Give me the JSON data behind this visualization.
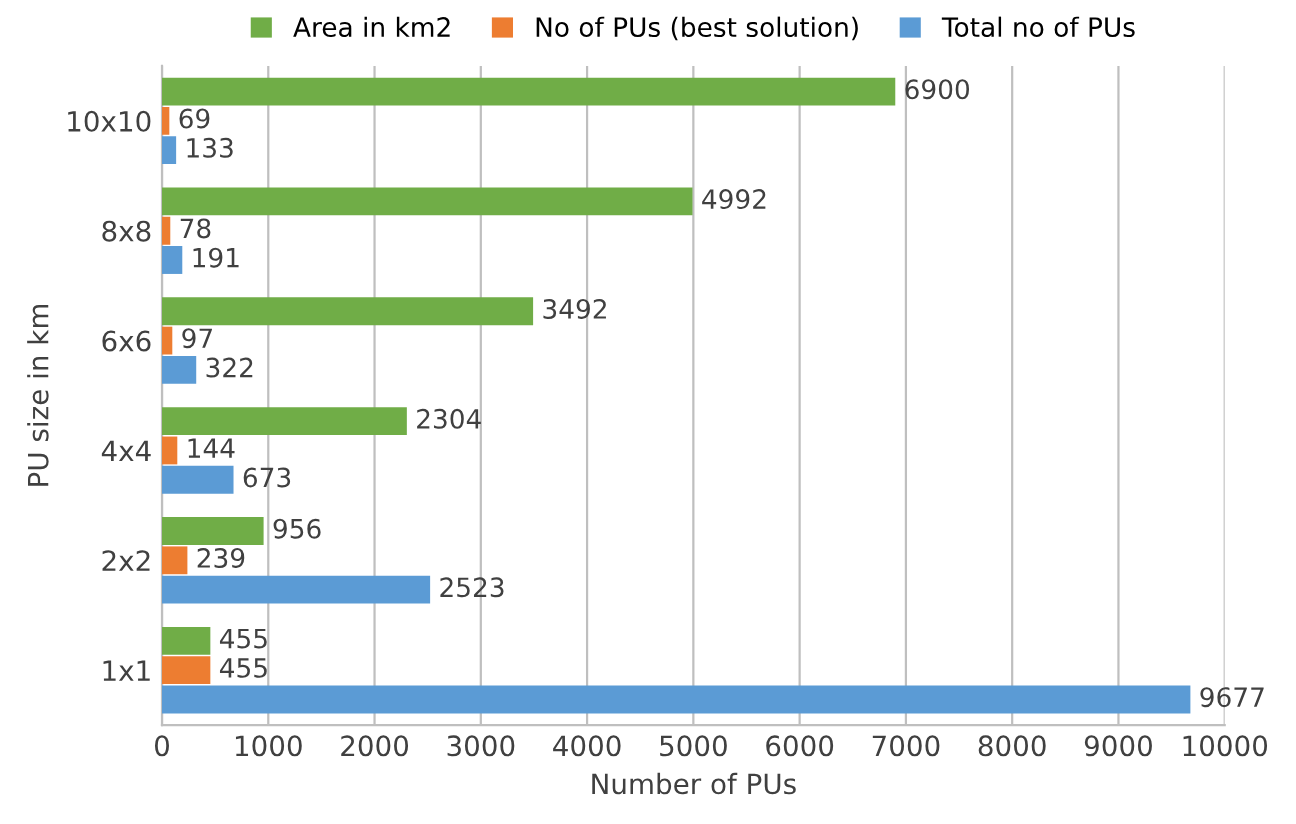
{
  "chart_data": {
    "type": "bar",
    "orientation": "horizontal",
    "xlabel": "Number of PUs",
    "ylabel": "PU size in km",
    "categories": [
      "10x10",
      "8x8",
      "6x6",
      "4x4",
      "2x2",
      "1x1"
    ],
    "series": [
      {
        "name": "Area in km2",
        "color": "#70ad47",
        "values": [
          6900,
          4992,
          3492,
          2304,
          956,
          455
        ]
      },
      {
        "name": "No of PUs (best solution)",
        "color": "#ed7d31",
        "values": [
          69,
          78,
          97,
          144,
          239,
          455
        ]
      },
      {
        "name": "Total no of PUs",
        "color": "#5b9bd5",
        "values": [
          133,
          191,
          322,
          673,
          2523,
          9677
        ]
      }
    ],
    "xlim": [
      0,
      10000
    ],
    "xticks": [
      0,
      1000,
      2000,
      3000,
      4000,
      5000,
      6000,
      7000,
      8000,
      9000,
      10000
    ],
    "grid": "x",
    "legend": "top",
    "data_labels": true
  }
}
